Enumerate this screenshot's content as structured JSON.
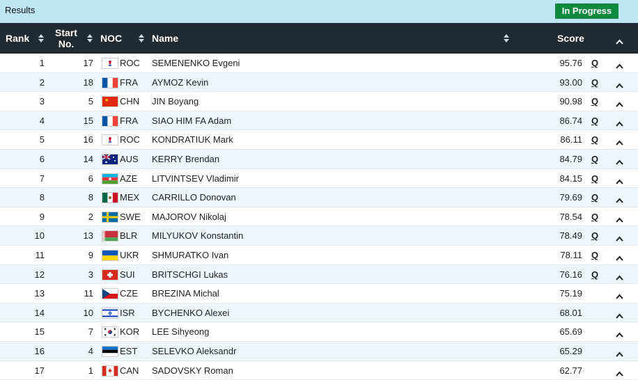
{
  "header": {
    "title": "Results",
    "status": "In Progress"
  },
  "columns": {
    "rank": "Rank",
    "start_line1": "Start",
    "start_line2": "No.",
    "noc": "NOC",
    "name": "Name",
    "score": "Score"
  },
  "colors": {
    "header_bg": "#1f2a33",
    "topbar_bg": "#bfe6f4",
    "status_green": "#0e8a3e",
    "row_alt": "#eef6fc"
  },
  "rows": [
    {
      "rank": "1",
      "start": "17",
      "noc": "ROC",
      "name": "SEMENENKO Evgeni",
      "score": "95.76",
      "q": "Q",
      "flag": "roc-flag-icon"
    },
    {
      "rank": "2",
      "start": "18",
      "noc": "FRA",
      "name": "AYMOZ Kevin",
      "score": "93.00",
      "q": "Q",
      "flag": "fra-flag-icon"
    },
    {
      "rank": "3",
      "start": "5",
      "noc": "CHN",
      "name": "JIN Boyang",
      "score": "90.98",
      "q": "Q",
      "flag": "chn-flag-icon"
    },
    {
      "rank": "4",
      "start": "15",
      "noc": "FRA",
      "name": "SIAO HIM FA Adam",
      "score": "86.74",
      "q": "Q",
      "flag": "fra-flag-icon"
    },
    {
      "rank": "5",
      "start": "16",
      "noc": "ROC",
      "name": "KONDRATIUK Mark",
      "score": "86.11",
      "q": "Q",
      "flag": "roc-flag-icon"
    },
    {
      "rank": "6",
      "start": "14",
      "noc": "AUS",
      "name": "KERRY Brendan",
      "score": "84.79",
      "q": "Q",
      "flag": "aus-flag-icon"
    },
    {
      "rank": "7",
      "start": "6",
      "noc": "AZE",
      "name": "LITVINTSEV Vladimir",
      "score": "84.15",
      "q": "Q",
      "flag": "aze-flag-icon"
    },
    {
      "rank": "8",
      "start": "8",
      "noc": "MEX",
      "name": "CARRILLO Donovan",
      "score": "79.69",
      "q": "Q",
      "flag": "mex-flag-icon"
    },
    {
      "rank": "9",
      "start": "2",
      "noc": "SWE",
      "name": "MAJOROV Nikolaj",
      "score": "78.54",
      "q": "Q",
      "flag": "swe-flag-icon"
    },
    {
      "rank": "10",
      "start": "13",
      "noc": "BLR",
      "name": "MILYUKOV Konstantin",
      "score": "78.49",
      "q": "Q",
      "flag": "blr-flag-icon"
    },
    {
      "rank": "11",
      "start": "9",
      "noc": "UKR",
      "name": "SHMURATKO Ivan",
      "score": "78.11",
      "q": "Q",
      "flag": "ukr-flag-icon"
    },
    {
      "rank": "12",
      "start": "3",
      "noc": "SUI",
      "name": "BRITSCHGI Lukas",
      "score": "76.16",
      "q": "Q",
      "flag": "sui-flag-icon"
    },
    {
      "rank": "13",
      "start": "11",
      "noc": "CZE",
      "name": "BREZINA Michal",
      "score": "75.19",
      "q": "",
      "flag": "cze-flag-icon"
    },
    {
      "rank": "14",
      "start": "10",
      "noc": "ISR",
      "name": "BYCHENKO Alexei",
      "score": "68.01",
      "q": "",
      "flag": "isr-flag-icon"
    },
    {
      "rank": "15",
      "start": "7",
      "noc": "KOR",
      "name": "LEE Sihyeong",
      "score": "65.69",
      "q": "",
      "flag": "kor-flag-icon"
    },
    {
      "rank": "16",
      "start": "4",
      "noc": "EST",
      "name": "SELEVKO Aleksandr",
      "score": "65.29",
      "q": "",
      "flag": "est-flag-icon"
    },
    {
      "rank": "17",
      "start": "1",
      "noc": "CAN",
      "name": "SADOVSKY Roman",
      "score": "62.77",
      "q": "",
      "flag": "can-flag-icon"
    }
  ]
}
